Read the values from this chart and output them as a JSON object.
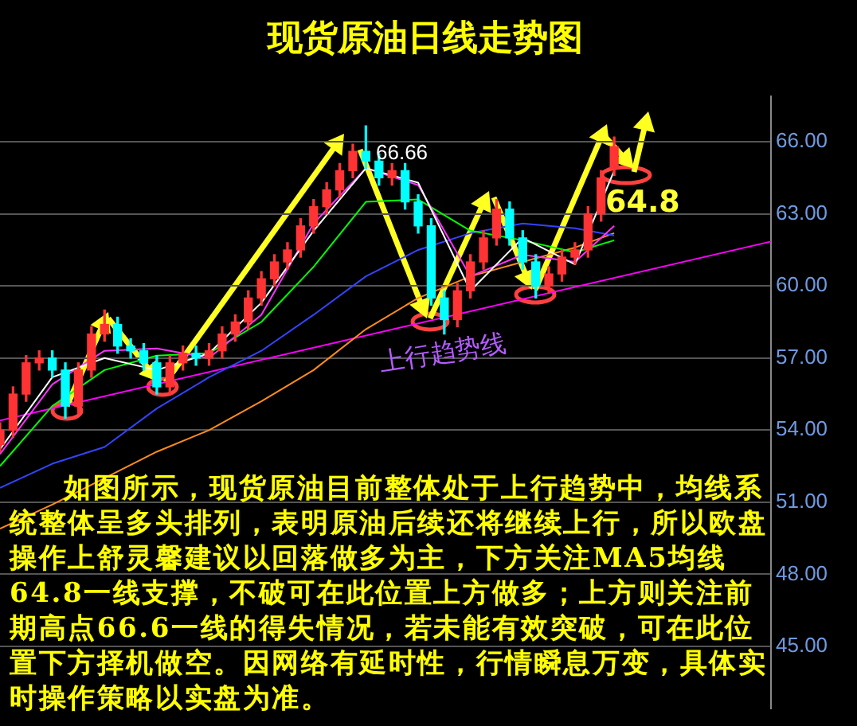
{
  "chart_data": {
    "type": "candlestick",
    "title": "现货原油日线走势图",
    "categories": [
      null,
      null,
      null,
      null,
      null,
      null,
      null,
      null,
      null,
      null,
      null,
      null,
      null,
      null,
      null,
      null,
      null,
      null,
      null,
      null,
      null,
      null,
      null,
      null,
      null,
      null,
      null,
      null,
      null,
      null,
      null,
      null,
      null,
      null,
      null,
      null,
      null,
      null,
      null,
      null,
      null,
      null,
      null,
      null,
      null,
      null,
      null,
      null,
      null,
      null,
      null,
      null,
      null,
      null,
      null,
      null,
      null,
      null,
      null,
      null
    ],
    "ohlc": [
      [
        53.4,
        54.3,
        53.1,
        54.0
      ],
      [
        54.0,
        55.8,
        53.7,
        55.5
      ],
      [
        55.5,
        57.1,
        55.2,
        56.8
      ],
      [
        56.8,
        57.3,
        56.5,
        57.0
      ],
      [
        57.0,
        57.3,
        56.2,
        56.5
      ],
      [
        56.5,
        56.8,
        54.5,
        55.0
      ],
      [
        55.0,
        56.8,
        54.7,
        56.5
      ],
      [
        56.5,
        58.3,
        56.2,
        58.0
      ],
      [
        58.0,
        59.0,
        57.7,
        58.4
      ],
      [
        58.4,
        58.7,
        57.2,
        57.5
      ],
      [
        57.5,
        57.8,
        57.0,
        57.3
      ],
      [
        57.3,
        57.6,
        56.5,
        56.8
      ],
      [
        56.8,
        57.1,
        55.5,
        55.8
      ],
      [
        55.8,
        57.1,
        55.5,
        56.8
      ],
      [
        56.8,
        57.5,
        56.5,
        57.2
      ],
      [
        57.2,
        57.5,
        56.7,
        57.0
      ],
      [
        57.0,
        57.6,
        56.7,
        57.3
      ],
      [
        57.3,
        58.3,
        57.0,
        58.0
      ],
      [
        58.0,
        58.8,
        57.7,
        58.5
      ],
      [
        58.5,
        59.8,
        58.2,
        59.5
      ],
      [
        59.5,
        60.6,
        59.2,
        60.3
      ],
      [
        60.3,
        61.3,
        60.0,
        61.0
      ],
      [
        61.0,
        61.8,
        60.7,
        61.5
      ],
      [
        61.5,
        62.8,
        61.2,
        62.5
      ],
      [
        62.5,
        63.6,
        62.2,
        63.3
      ],
      [
        63.3,
        64.3,
        63.0,
        64.0
      ],
      [
        64.0,
        65.1,
        63.7,
        64.8
      ],
      [
        64.8,
        65.9,
        64.5,
        65.6
      ],
      [
        65.6,
        66.66,
        64.9,
        65.2
      ],
      [
        65.2,
        65.5,
        64.2,
        64.5
      ],
      [
        64.5,
        65.1,
        64.2,
        64.8
      ],
      [
        64.8,
        65.1,
        63.2,
        63.5
      ],
      [
        63.5,
        63.8,
        62.2,
        62.5
      ],
      [
        62.5,
        62.8,
        59.2,
        59.5
      ],
      [
        59.5,
        59.8,
        58.0,
        58.6
      ],
      [
        58.6,
        60.1,
        58.3,
        59.8
      ],
      [
        59.8,
        61.3,
        59.5,
        61.0
      ],
      [
        61.0,
        62.3,
        60.7,
        62.0
      ],
      [
        62.0,
        63.6,
        61.7,
        63.2
      ],
      [
        63.2,
        63.5,
        61.7,
        62.0
      ],
      [
        62.0,
        62.3,
        60.7,
        61.0
      ],
      [
        61.0,
        61.3,
        59.5,
        60.0
      ],
      [
        60.0,
        60.8,
        59.7,
        60.5
      ],
      [
        60.5,
        61.5,
        60.2,
        61.2
      ],
      [
        61.2,
        61.8,
        60.9,
        61.5
      ],
      [
        61.5,
        63.3,
        61.2,
        63.0
      ],
      [
        63.0,
        64.8,
        62.7,
        64.5
      ],
      [
        64.9,
        66.2,
        64.6,
        65.8
      ],
      null,
      null,
      null,
      null,
      null,
      null,
      null,
      null,
      null,
      null,
      null,
      null
    ],
    "colors": [
      "#ff3333",
      "#ff3333",
      "#ff3333",
      "#ff3333",
      "#00ffff",
      "#00ffff",
      "#ff3333",
      "#ff3333",
      "#ff3333",
      "#00ffff",
      "#00ffff",
      "#00ffff",
      "#00ffff",
      "#ff3333",
      "#ff3333",
      "#00ffff",
      "#ff3333",
      "#ff3333",
      "#ff3333",
      "#ff3333",
      "#ff3333",
      "#ff3333",
      "#ff3333",
      "#ff3333",
      "#ff3333",
      "#ff3333",
      "#ff3333",
      "#ff3333",
      "#00ffff",
      "#00ffff",
      "#ff3333",
      "#00ffff",
      "#00ffff",
      "#00ffff",
      "#00ffff",
      "#ff3333",
      "#ff3333",
      "#ff3333",
      "#ff3333",
      "#00ffff",
      "#00ffff",
      "#00ffff",
      "#ff3333",
      "#ff3333",
      "#ff3333",
      "#ff3333",
      "#ff3333",
      "#ff3333",
      null,
      null,
      null,
      null,
      null,
      null,
      null,
      null,
      null,
      null,
      null,
      null
    ],
    "series": [
      {
        "type": "line",
        "color": "#ffffff",
        "values": [
          53.2,
          null,
          null,
          null,
          56.2,
          null,
          null,
          null,
          57.0,
          null,
          null,
          null,
          56.5,
          null,
          null,
          null,
          57.2,
          null,
          null,
          null,
          59.3,
          null,
          null,
          null,
          62.3,
          null,
          null,
          null,
          64.9,
          null,
          null,
          null,
          64.3,
          null,
          null,
          null,
          59.8,
          null,
          null,
          null,
          62.0,
          null,
          null,
          null,
          60.9,
          null,
          null,
          64.8,
          null,
          null,
          null,
          null,
          null,
          null,
          null,
          null,
          null,
          null,
          null,
          null
        ]
      },
      {
        "type": "line",
        "color": "#ff33ff",
        "values": [
          53.0,
          null,
          null,
          null,
          55.9,
          null,
          null,
          null,
          57.3,
          null,
          null,
          null,
          57.4,
          null,
          null,
          null,
          57.0,
          null,
          null,
          null,
          58.8,
          null,
          null,
          null,
          62.6,
          null,
          null,
          null,
          64.9,
          null,
          null,
          null,
          64.2,
          null,
          null,
          null,
          60.4,
          null,
          null,
          null,
          61.3,
          null,
          null,
          null,
          61.0,
          null,
          null,
          62.5,
          null,
          null,
          null,
          null,
          null,
          null,
          null,
          null,
          null,
          null,
          null,
          null
        ]
      },
      {
        "type": "line",
        "color": "#00ff00",
        "values": [
          52.5,
          null,
          null,
          null,
          55.0,
          null,
          null,
          null,
          56.5,
          null,
          null,
          null,
          57.1,
          null,
          null,
          null,
          57.2,
          null,
          null,
          null,
          58.5,
          null,
          null,
          null,
          60.8,
          null,
          null,
          null,
          63.5,
          null,
          null,
          null,
          63.6,
          null,
          null,
          null,
          62.3,
          null,
          null,
          null,
          61.9,
          null,
          null,
          null,
          61.4,
          null,
          null,
          61.9,
          null,
          null,
          null,
          null,
          null,
          null,
          null,
          null,
          null,
          null,
          null,
          null
        ]
      },
      {
        "type": "line",
        "color": "#3344ff",
        "values": [
          51.6,
          null,
          null,
          null,
          52.6,
          null,
          null,
          null,
          53.3,
          null,
          null,
          null,
          54.9,
          null,
          null,
          null,
          56.2,
          null,
          null,
          null,
          57.3,
          null,
          null,
          null,
          58.8,
          null,
          null,
          null,
          60.4,
          null,
          null,
          null,
          61.5,
          null,
          null,
          null,
          62.2,
          null,
          null,
          null,
          62.6,
          null,
          null,
          null,
          62.4,
          null,
          null,
          62.1,
          null,
          null,
          null,
          null,
          null,
          null,
          null,
          null,
          null,
          null,
          null,
          null
        ]
      },
      {
        "type": "line",
        "color": "#ff8c1a",
        "values": [
          49.9,
          null,
          null,
          null,
          50.9,
          null,
          null,
          null,
          52.0,
          null,
          null,
          null,
          53.1,
          null,
          null,
          null,
          54.0,
          null,
          null,
          null,
          55.2,
          null,
          null,
          null,
          56.5,
          null,
          null,
          null,
          58.2,
          null,
          null,
          null,
          59.5,
          null,
          null,
          null,
          60.4,
          null,
          null,
          null,
          61.0,
          null,
          null,
          null,
          61.6,
          null,
          null,
          62.2,
          null,
          null,
          null,
          null,
          null,
          null,
          null,
          null,
          null,
          null,
          null,
          null
        ]
      },
      {
        "type": "line",
        "color": "#ff00ff",
        "values": [
          54.4,
          null,
          null,
          null,
          null,
          null,
          null,
          null,
          null,
          null,
          null,
          null,
          null,
          null,
          null,
          null,
          null,
          null,
          null,
          null,
          null,
          null,
          null,
          null,
          null,
          null,
          null,
          null,
          null,
          null,
          null,
          null,
          null,
          null,
          null,
          null,
          null,
          null,
          null,
          null,
          null,
          null,
          null,
          null,
          null,
          null,
          null,
          null,
          null,
          null,
          null,
          null,
          null,
          null,
          null,
          null,
          null,
          null,
          null,
          61.85
        ]
      }
    ],
    "ylim": [
      42.4,
      67.9
    ],
    "yticks": [
      {
        "value": 45,
        "label": "45.00"
      },
      {
        "value": 48,
        "label": "48.00"
      },
      {
        "value": 51,
        "label": "51.00"
      },
      {
        "value": 54,
        "label": "54.00"
      },
      {
        "value": 57,
        "label": "57.00"
      },
      {
        "value": 60,
        "label": "60.00"
      },
      {
        "value": 63,
        "label": "63.00"
      },
      {
        "value": 66,
        "label": "66.00"
      }
    ],
    "grid": "y",
    "tick_labels": "y",
    "annotations": [
      "66.66",
      "64.8",
      "上行趋势线",
      "如图所示，现货原油目前整体处于上行趋势中，均线系统整体呈多头排列，表明原油后续还将继续上行，所以欧盘操作上舒灵馨建议以回落做多为主，下方关注MA5均线64.8一线支撑，不破可在此位置上方做多；上方则关注前期高点66.6一线的得失情况，若未能有效突破，可在此位置下方择机做空。因网络有延时性，行情瞬息万变，具体实时操作策略以实盘为准。"
    ]
  }
}
